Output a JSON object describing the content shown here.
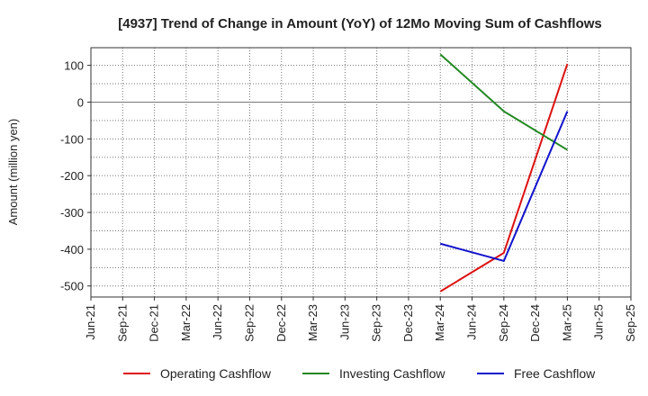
{
  "chart_data": {
    "type": "line",
    "title": "[4937]  Trend of Change in Amount (YoY) of 12Mo Moving Sum of Cashflows",
    "xlabel": "",
    "ylabel": "Amount (million yen)",
    "categories": [
      "Jun-21",
      "Sep-21",
      "Dec-21",
      "Mar-22",
      "Jun-22",
      "Sep-22",
      "Dec-22",
      "Mar-23",
      "Jun-23",
      "Sep-23",
      "Dec-23",
      "Mar-24",
      "Jun-24",
      "Sep-24",
      "Dec-24",
      "Mar-25",
      "Jun-25",
      "Sep-25"
    ],
    "ylim": [
      -530,
      148
    ],
    "yticks": [
      100,
      0,
      -100,
      -200,
      -300,
      -400,
      -500
    ],
    "grid": true,
    "legend": "bottom",
    "series": [
      {
        "name": "Operating Cashflow",
        "color": "#dd1111",
        "x": [
          "Mar-24",
          "Sep-24",
          "Mar-25"
        ],
        "values": [
          -515,
          -410,
          104
        ]
      },
      {
        "name": "Investing Cashflow",
        "color": "#228822",
        "x": [
          "Mar-24",
          "Sep-24",
          "Mar-25"
        ],
        "values": [
          130,
          -25,
          -130
        ]
      },
      {
        "name": "Free Cashflow",
        "color": "#1111cc",
        "x": [
          "Mar-24",
          "Sep-24",
          "Mar-25"
        ],
        "values": [
          -385,
          -432,
          -25
        ]
      }
    ]
  }
}
